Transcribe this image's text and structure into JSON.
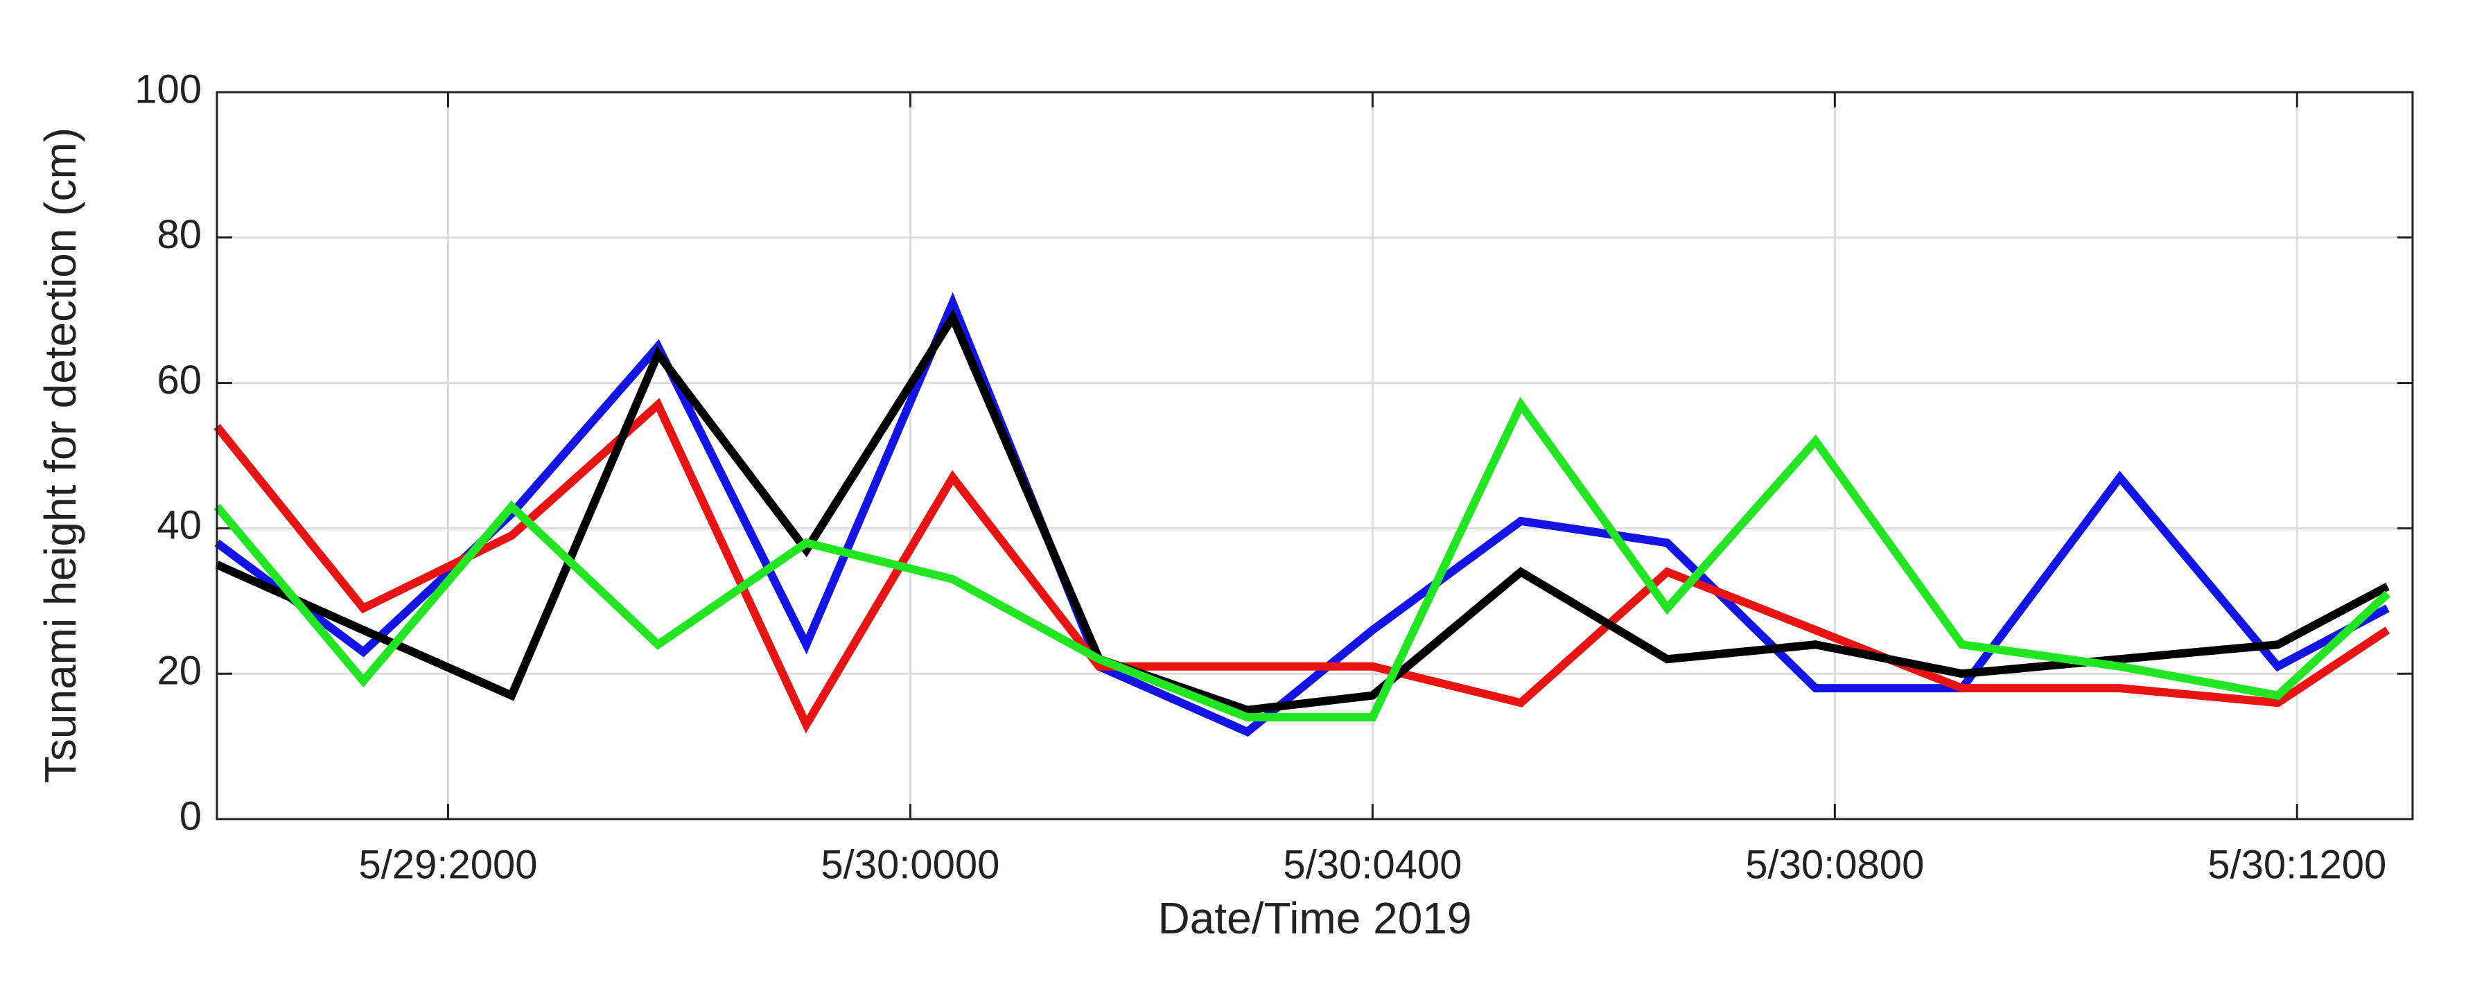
{
  "chart_data": {
    "type": "line",
    "xlabel": "Date/Time 2019",
    "ylabel": "Tsunami height for detection (cm)",
    "x": [
      "5/29:1800",
      "5/29:1916",
      "5/29:2033",
      "5/29:2149",
      "5/29:2306",
      "5/30:0022",
      "5/30:0138",
      "5/30:0255",
      "5/30:0400",
      "5/30:0517",
      "5/30:0633",
      "5/30:0750",
      "5/30:0906",
      "5/30:1028",
      "5/30:1150",
      "5/30:1247"
    ],
    "series": [
      {
        "color": "#1414e6",
        "values": [
          38,
          23,
          42,
          65,
          24,
          71,
          21,
          12,
          26,
          41,
          38,
          18,
          18,
          47,
          21,
          29
        ]
      },
      {
        "color": "#e81414",
        "values": [
          54,
          29,
          39,
          57,
          13,
          47,
          21,
          21,
          21,
          16,
          34,
          26,
          18,
          18,
          16,
          26
        ]
      },
      {
        "color": "#000000",
        "values": [
          35,
          26,
          17,
          64,
          37,
          69,
          22,
          15,
          17,
          34,
          22,
          24,
          20,
          22,
          24,
          32
        ]
      },
      {
        "color": "#22e622",
        "values": [
          43,
          19,
          43,
          24,
          38,
          33,
          22,
          14,
          14,
          57,
          29,
          52,
          24,
          21,
          17,
          31
        ]
      }
    ],
    "xlim": [
      "5/29:1800",
      "5/30:1300"
    ],
    "xticks": [
      "5/29:2000",
      "5/30:0000",
      "5/30:0400",
      "5/30:0800",
      "5/30:1200"
    ],
    "ylim": [
      0,
      100
    ],
    "yticks": [
      0,
      20,
      40,
      60,
      80,
      100
    ],
    "grid": true
  }
}
